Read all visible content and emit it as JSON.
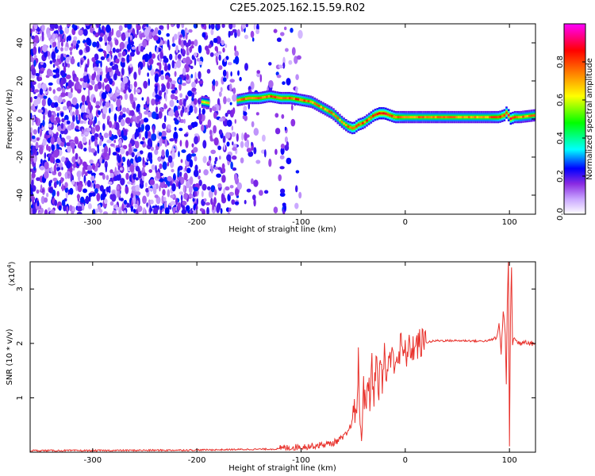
{
  "title": "C2E5.2025.162.15.59.R02",
  "chart_data": [
    {
      "type": "heatmap",
      "xlabel": "Height of straight line (km)",
      "ylabel": "Frequency (Hz)",
      "xlim": [
        -360,
        125
      ],
      "ylim": [
        -50,
        50
      ],
      "xticks": [
        -300,
        -200,
        -100,
        0,
        100
      ],
      "xtick_labels": [
        "-300",
        "-200",
        "-100",
        "0",
        "100"
      ],
      "yticks": [
        -40,
        -20,
        0,
        20,
        40
      ],
      "ytick_labels": [
        "-40",
        "-20",
        "0",
        "20",
        "40"
      ],
      "colorbar": {
        "label": "Normalized spectral amplitude",
        "range": [
          0,
          1
        ],
        "ticks": [
          0.0,
          0.2,
          0.4,
          0.6,
          0.8
        ],
        "tick_labels": [
          "0.0",
          "0.2",
          "0.4",
          "0.6",
          "0.8"
        ],
        "colors": [
          "#ffffff",
          "#8a2be2",
          "#0000ff",
          "#00ffff",
          "#00ff00",
          "#ffff00",
          "#ff8000",
          "#ff0000",
          "#ff00ff"
        ]
      },
      "noise_region": {
        "x": [
          -360,
          -100
        ],
        "y": [
          -50,
          50
        ],
        "level": 0.2
      },
      "ridge": {
        "x": [
          -195,
          -185,
          -160,
          -150,
          -140,
          -130,
          -120,
          -110,
          -100,
          -90,
          -80,
          -70,
          -60,
          -55,
          -50,
          -45,
          -40,
          -35,
          -30,
          -25,
          -20,
          -15,
          -10,
          0,
          20,
          40,
          60,
          80,
          90,
          95,
          98,
          100,
          105,
          110,
          125
        ],
        "y": [
          9,
          8,
          10,
          11,
          11,
          12,
          11,
          11,
          10,
          9,
          6,
          3,
          -2,
          -4,
          -5,
          -3,
          -2,
          0,
          2,
          3,
          3,
          2,
          1,
          1,
          1,
          1,
          1,
          1,
          1,
          2,
          4,
          0,
          1,
          1,
          2
        ],
        "amplitude": [
          0.6,
          0.6,
          0.65,
          0.7,
          0.7,
          0.7,
          0.7,
          0.7,
          0.7,
          0.65,
          0.65,
          0.65,
          0.65,
          0.7,
          0.75,
          0.75,
          0.7,
          0.7,
          0.75,
          0.8,
          0.8,
          0.75,
          0.7,
          0.65,
          0.65,
          0.65,
          0.65,
          0.65,
          0.7,
          0.75,
          0.8,
          0.85,
          0.7,
          0.65,
          0.65
        ]
      }
    },
    {
      "type": "line",
      "xlabel": "Height of straight line (km)",
      "ylabel": "SNR (10 * v/v)",
      "y_multiplier": "(x10",
      "y_multiplier_exp": "4",
      "y_multiplier_close": ")",
      "xlim": [
        -360,
        125
      ],
      "ylim": [
        0,
        3.5
      ],
      "xticks": [
        -300,
        -200,
        -100,
        0,
        100
      ],
      "xtick_labels": [
        "-300",
        "-200",
        "-100",
        "0",
        "100"
      ],
      "yticks": [
        1,
        2,
        3
      ],
      "ytick_labels": [
        "1",
        "2",
        "3"
      ],
      "color": "#e8302a",
      "series": [
        {
          "x": [
            -360,
            -300,
            -200,
            -120,
            -90,
            -70,
            -60,
            -55,
            -50,
            -46,
            -45,
            -44,
            -42,
            -40,
            -38,
            -36,
            -34,
            -32,
            -30,
            -28,
            -26,
            -24,
            -22,
            -20,
            -18,
            -16,
            -14,
            -12,
            -10,
            -8,
            -6,
            -4,
            -2,
            0,
            5,
            10,
            15,
            20,
            30,
            40,
            50,
            60,
            70,
            80,
            88,
            90,
            92,
            94,
            96,
            97,
            98,
            99,
            100,
            101,
            102,
            103,
            104,
            106,
            110,
            115,
            120,
            125
          ],
          "y": [
            0.03,
            0.03,
            0.04,
            0.06,
            0.1,
            0.15,
            0.25,
            0.35,
            0.6,
            0.9,
            1.9,
            0.6,
            0.4,
            1.2,
            0.7,
            1.5,
            0.9,
            1.6,
            1.1,
            1.8,
            1.0,
            1.7,
            1.2,
            1.9,
            1.3,
            1.8,
            1.5,
            2.0,
            1.6,
            1.8,
            1.7,
            2.0,
            1.8,
            1.8,
            1.9,
            1.95,
            2.0,
            2.02,
            2.05,
            2.05,
            2.05,
            2.05,
            2.04,
            2.05,
            2.1,
            2.4,
            1.8,
            2.6,
            2.2,
            1.2,
            2.8,
            3.5,
            0.1,
            2.5,
            3.4,
            2.0,
            2.1,
            2.05,
            2.0,
            2.05,
            2.0,
            2.0
          ]
        }
      ]
    }
  ]
}
